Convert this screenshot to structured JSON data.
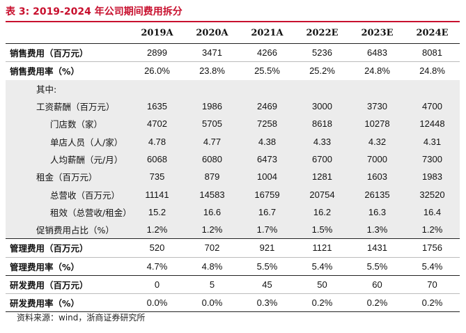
{
  "title": "表 3: 2019-2024 年公司期间费用拆分",
  "columns": [
    "2019A",
    "2020A",
    "2021A",
    "2022E",
    "2023E",
    "2024E"
  ],
  "rows": [
    {
      "label": "销售费用（百万元）",
      "values": [
        "2899",
        "3471",
        "4266",
        "5236",
        "6483",
        "8081"
      ]
    },
    {
      "label": "销售费用率（%）",
      "values": [
        "26.0%",
        "23.8%",
        "25.5%",
        "25.2%",
        "24.8%",
        "24.8%"
      ]
    },
    {
      "label": "其中:",
      "values": [
        "",
        "",
        "",
        "",
        "",
        ""
      ]
    },
    {
      "label": "工资薪酬（百万元）",
      "values": [
        "1635",
        "1986",
        "2469",
        "3000",
        "3730",
        "4700"
      ]
    },
    {
      "label": "门店数（家）",
      "values": [
        "4702",
        "5705",
        "7258",
        "8618",
        "10278",
        "12448"
      ]
    },
    {
      "label": "单店人员（人/家）",
      "values": [
        "4.78",
        "4.77",
        "4.38",
        "4.33",
        "4.32",
        "4.31"
      ]
    },
    {
      "label": "人均薪酬（元/月）",
      "values": [
        "6068",
        "6080",
        "6473",
        "6700",
        "7000",
        "7300"
      ]
    },
    {
      "label": "租金（百万元）",
      "values": [
        "735",
        "879",
        "1004",
        "1281",
        "1603",
        "1983"
      ]
    },
    {
      "label": "总营收（百万元）",
      "values": [
        "11141",
        "14583",
        "16759",
        "20754",
        "26135",
        "32520"
      ]
    },
    {
      "label": "租效（总营收/租金）",
      "values": [
        "15.2",
        "16.6",
        "16.7",
        "16.2",
        "16.3",
        "16.4"
      ]
    },
    {
      "label": "促销费用占比（%）",
      "values": [
        "1.2%",
        "1.2%",
        "1.7%",
        "1.5%",
        "1.3%",
        "1.2%"
      ]
    },
    {
      "label": "管理费用（百万元）",
      "values": [
        "520",
        "702",
        "921",
        "1121",
        "1431",
        "1756"
      ]
    },
    {
      "label": "管理费用率（%）",
      "values": [
        "4.7%",
        "4.8%",
        "5.5%",
        "5.4%",
        "5.5%",
        "5.4%"
      ]
    },
    {
      "label": "研发费用（百万元）",
      "values": [
        "0",
        "5",
        "45",
        "50",
        "60",
        "70"
      ]
    },
    {
      "label": "研发费用率（%）",
      "values": [
        "0.0%",
        "0.0%",
        "0.3%",
        "0.2%",
        "0.2%",
        "0.2%"
      ]
    }
  ],
  "source": "资料来源：wind，浙商证券研究所"
}
